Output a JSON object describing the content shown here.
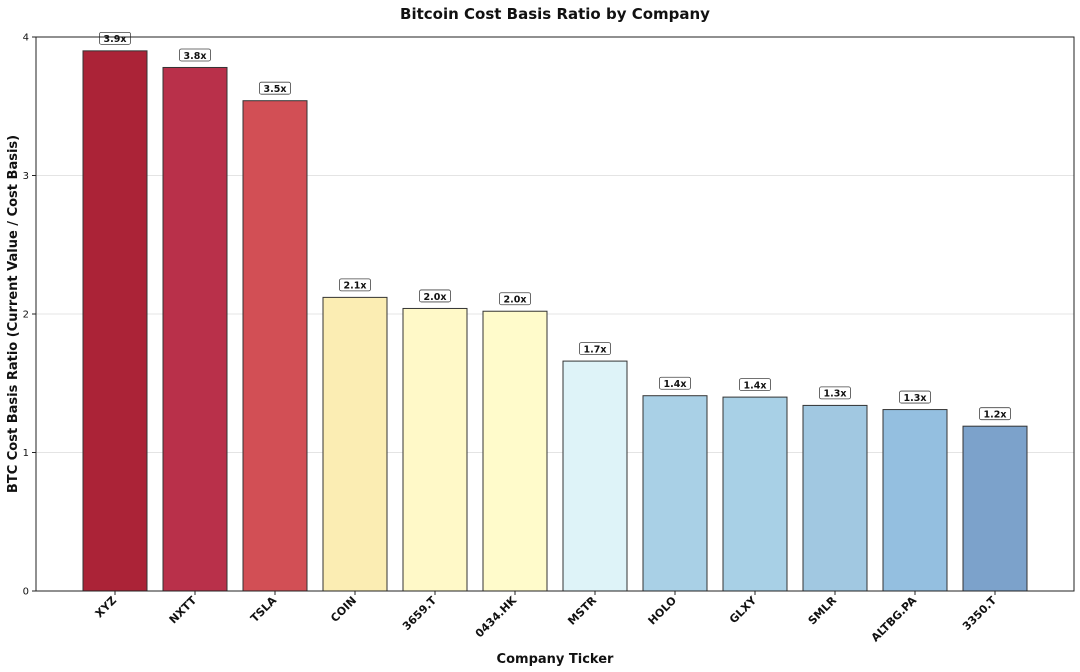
{
  "chart_data": {
    "type": "bar",
    "title": "Bitcoin Cost Basis Ratio by Company",
    "xlabel": "Company Ticker",
    "ylabel": "BTC Cost Basis Ratio (Current Value / Cost Basis)",
    "ylim": [
      0,
      4
    ],
    "yticks": [
      0,
      1,
      2,
      3,
      4
    ],
    "grid": "horizontal",
    "legend": "none",
    "categories": [
      "XYZ",
      "NXTT",
      "TSLA",
      "COIN",
      "3659.T",
      "0434.HK",
      "MSTR",
      "HOLO",
      "GLXY",
      "SMLR",
      "ALTBG.PA",
      "3350.T"
    ],
    "values": [
      3.9,
      3.78,
      3.54,
      2.12,
      2.04,
      2.02,
      1.66,
      1.41,
      1.4,
      1.34,
      1.31,
      1.19
    ],
    "data_labels": [
      "3.9x",
      "3.8x",
      "3.5x",
      "2.1x",
      "2.0x",
      "2.0x",
      "1.7x",
      "1.4x",
      "1.4x",
      "1.3x",
      "1.3x",
      "1.2x"
    ],
    "bar_colors": [
      "#ab2337",
      "#b9304a",
      "#d24f55",
      "#fbedb3",
      "#fff9c8",
      "#fffbcb",
      "#def3f8",
      "#a9d0e6",
      "#a8d0e6",
      "#a1c8e1",
      "#94bfe0",
      "#7ca2cb"
    ]
  }
}
